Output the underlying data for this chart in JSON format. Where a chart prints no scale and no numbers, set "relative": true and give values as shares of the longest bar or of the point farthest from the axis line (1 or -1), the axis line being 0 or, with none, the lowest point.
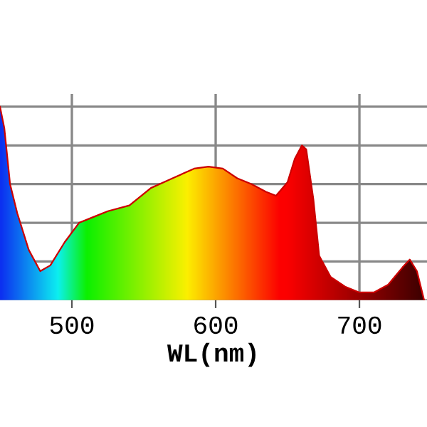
{
  "chart_data": {
    "type": "area",
    "xlabel": "WL(nm)",
    "relative": true,
    "grid": true,
    "tick_labels": "x",
    "xlim": [
      450,
      747
    ],
    "xticks": [
      500,
      600,
      700
    ],
    "series": [
      {
        "color": "#cc0000",
        "x": [
          450,
          453,
          457,
          462,
          470,
          478,
          485,
          495,
          505,
          515,
          525,
          540,
          555,
          570,
          585,
          595,
          605,
          615,
          625,
          635,
          642,
          650,
          655,
          660,
          663,
          668,
          672,
          680,
          690,
          700,
          710,
          720,
          730,
          735,
          740,
          745
        ],
        "values": [
          1.0,
          0.89,
          0.6,
          0.45,
          0.26,
          0.15,
          0.18,
          0.3,
          0.4,
          0.43,
          0.46,
          0.49,
          0.58,
          0.63,
          0.68,
          0.69,
          0.68,
          0.63,
          0.6,
          0.56,
          0.54,
          0.61,
          0.73,
          0.8,
          0.78,
          0.52,
          0.23,
          0.12,
          0.07,
          0.04,
          0.04,
          0.08,
          0.17,
          0.21,
          0.15,
          0.0
        ]
      }
    ]
  }
}
